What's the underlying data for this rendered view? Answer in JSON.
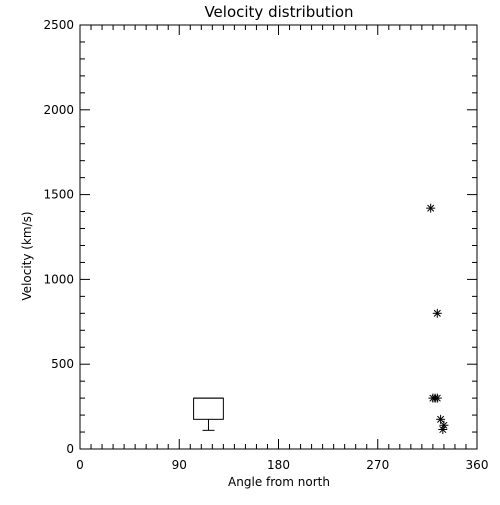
{
  "chart_data": {
    "type": "scatter",
    "title": "Velocity distribution",
    "xlabel": "Angle from north",
    "ylabel": "Velocity (km/s)",
    "xlim": [
      0,
      360
    ],
    "ylim": [
      0,
      2500
    ],
    "xticks": [
      0,
      90,
      180,
      270,
      360
    ],
    "yticks": [
      0,
      500,
      1000,
      1500,
      2000,
      2500
    ],
    "x_minor_step": 10,
    "y_minor_step": 100,
    "grid": false,
    "marker": "asterisk",
    "points": [
      {
        "x": 318,
        "y": 1420
      },
      {
        "x": 324,
        "y": 800
      },
      {
        "x": 320,
        "y": 300
      },
      {
        "x": 322,
        "y": 300
      },
      {
        "x": 324,
        "y": 300
      },
      {
        "x": 327,
        "y": 175
      },
      {
        "x": 330,
        "y": 140
      },
      {
        "x": 329,
        "y": 115
      }
    ],
    "box": {
      "x_left": 103,
      "x_right": 130,
      "q1": 175,
      "median": 300,
      "q3": 300,
      "whisker_low": 110
    },
    "color": "#000000"
  }
}
